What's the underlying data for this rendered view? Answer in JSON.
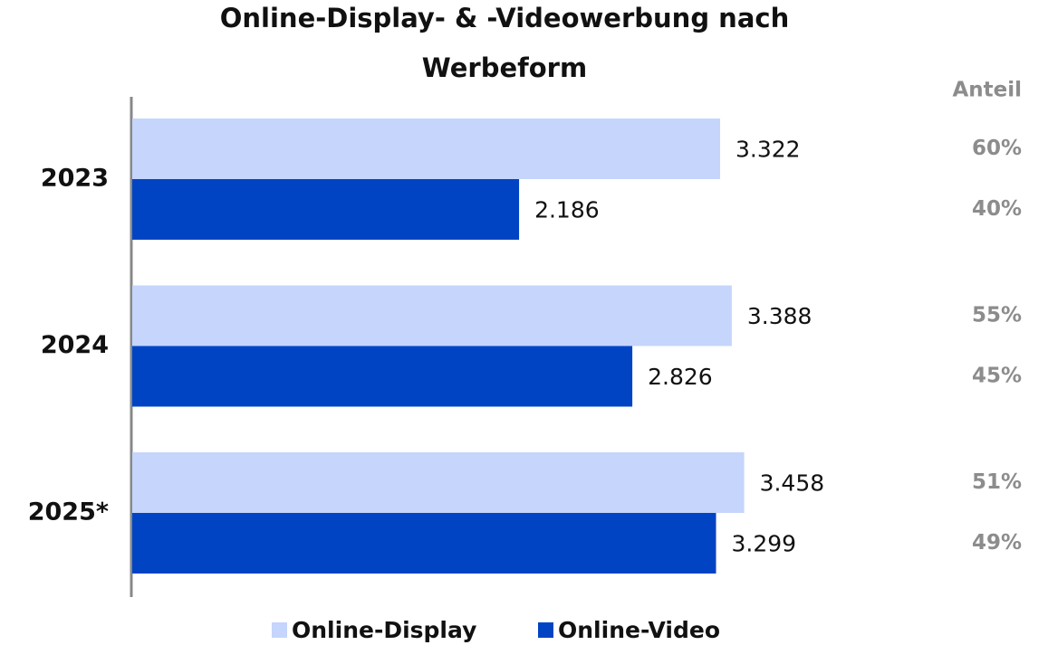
{
  "chart_data": {
    "type": "bar",
    "orientation": "horizontal",
    "title": "Online-Display- & -Videowerbung nach Werbeform",
    "categories": [
      "2023",
      "2024",
      "2025*"
    ],
    "share_header": "Anteil",
    "series": [
      {
        "name": "Online-Display",
        "color": "#c5d5fb",
        "values": [
          3322,
          3388,
          3458
        ],
        "value_labels": [
          "3.322",
          "3.388",
          "3.458"
        ],
        "shares": [
          60,
          55,
          51
        ],
        "share_labels": [
          "60%",
          "55%",
          "51%"
        ]
      },
      {
        "name": "Online-Video",
        "color": "#0044c4",
        "values": [
          2186,
          2826,
          3299
        ],
        "value_labels": [
          "2.186",
          "2.826",
          "3.299"
        ],
        "shares": [
          40,
          45,
          49
        ],
        "share_labels": [
          "40%",
          "45%",
          "49%"
        ]
      }
    ],
    "legend": "bottom"
  }
}
